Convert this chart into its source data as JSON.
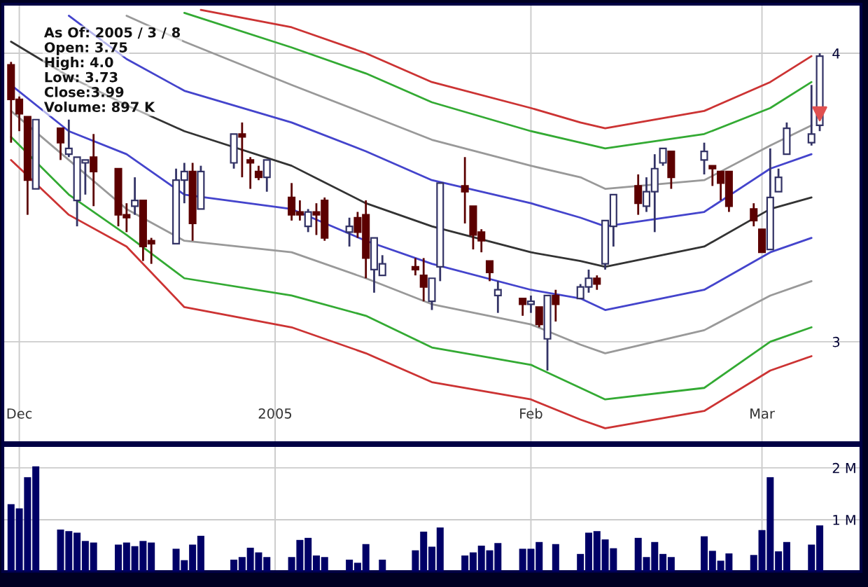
{
  "chart_data": [
    {
      "type": "candlestick",
      "x": [
        "2004-11-30",
        "2004-12-01",
        "2004-12-02",
        "2004-12-03",
        "2004-12-06",
        "2004-12-07",
        "2004-12-08",
        "2004-12-09",
        "2004-12-10",
        "2004-12-13",
        "2004-12-14",
        "2004-12-15",
        "2004-12-16",
        "2004-12-17",
        "2004-12-20",
        "2004-12-21",
        "2004-12-22",
        "2004-12-23",
        "2004-12-27",
        "2004-12-28",
        "2004-12-29",
        "2004-12-30",
        "2004-12-31",
        "2005-01-03",
        "2005-01-04",
        "2005-01-05",
        "2005-01-06",
        "2005-01-07",
        "2005-01-10",
        "2005-01-11",
        "2005-01-12",
        "2005-01-13",
        "2005-01-14",
        "2005-01-18",
        "2005-01-19",
        "2005-01-20",
        "2005-01-21",
        "2005-01-24",
        "2005-01-25",
        "2005-01-26",
        "2005-01-27",
        "2005-01-28",
        "2005-01-31",
        "2005-02-01",
        "2005-02-02",
        "2005-02-03",
        "2005-02-04",
        "2005-02-07",
        "2005-02-08",
        "2005-02-09",
        "2005-02-10",
        "2005-02-11",
        "2005-02-14",
        "2005-02-15",
        "2005-02-16",
        "2005-02-17",
        "2005-02-18",
        "2005-02-22",
        "2005-02-23",
        "2005-02-24",
        "2005-02-25",
        "2005-02-28",
        "2005-03-01",
        "2005-03-02",
        "2005-03-03",
        "2005-03-04",
        "2005-03-07",
        "2005-03-08"
      ],
      "ohlc": [
        [
          3.96,
          3.97,
          3.69,
          3.84
        ],
        [
          3.84,
          3.85,
          3.73,
          3.79
        ],
        [
          3.78,
          3.78,
          3.44,
          3.56
        ],
        [
          3.53,
          3.77,
          3.53,
          3.77
        ],
        [
          3.74,
          3.74,
          3.63,
          3.69
        ],
        [
          3.65,
          3.77,
          3.64,
          3.67
        ],
        [
          3.49,
          3.64,
          3.4,
          3.64
        ],
        [
          3.62,
          3.63,
          3.51,
          3.63
        ],
        [
          3.64,
          3.72,
          3.47,
          3.59
        ],
        [
          3.6,
          3.6,
          3.4,
          3.44
        ],
        [
          3.44,
          3.48,
          3.38,
          3.43
        ],
        [
          3.47,
          3.57,
          3.44,
          3.49
        ],
        [
          3.49,
          3.49,
          3.28,
          3.33
        ],
        [
          3.35,
          3.36,
          3.27,
          3.34
        ],
        [
          3.34,
          3.6,
          3.34,
          3.56
        ],
        [
          3.56,
          3.62,
          3.48,
          3.59
        ],
        [
          3.59,
          3.62,
          3.35,
          3.41
        ],
        [
          3.46,
          3.61,
          3.46,
          3.59
        ],
        [
          3.62,
          3.72,
          3.6,
          3.72
        ],
        [
          3.72,
          3.76,
          3.57,
          3.71
        ],
        [
          3.63,
          3.64,
          3.53,
          3.62
        ],
        [
          3.59,
          3.61,
          3.56,
          3.57
        ],
        [
          3.57,
          3.63,
          3.52,
          3.63
        ],
        [
          3.5,
          3.55,
          3.42,
          3.44
        ],
        [
          3.45,
          3.49,
          3.42,
          3.44
        ],
        [
          3.4,
          3.46,
          3.38,
          3.45
        ],
        [
          3.45,
          3.48,
          3.37,
          3.44
        ],
        [
          3.49,
          3.5,
          3.35,
          3.36
        ],
        [
          3.38,
          3.43,
          3.33,
          3.4
        ],
        [
          3.43,
          3.45,
          3.36,
          3.38
        ],
        [
          3.44,
          3.49,
          3.22,
          3.29
        ],
        [
          3.25,
          3.36,
          3.17,
          3.36
        ],
        [
          3.23,
          3.3,
          3.23,
          3.27
        ],
        [
          3.26,
          3.29,
          3.23,
          3.25
        ],
        [
          3.23,
          3.29,
          3.14,
          3.19
        ],
        [
          3.14,
          3.22,
          3.11,
          3.22
        ],
        [
          3.26,
          3.55,
          3.21,
          3.55
        ],
        [
          3.54,
          3.64,
          3.41,
          3.52
        ],
        [
          3.47,
          3.47,
          3.32,
          3.37
        ],
        [
          3.38,
          3.39,
          3.31,
          3.35
        ],
        [
          3.28,
          3.28,
          3.21,
          3.24
        ],
        [
          3.16,
          3.21,
          3.1,
          3.18
        ],
        [
          3.15,
          3.15,
          3.09,
          3.13
        ],
        [
          3.13,
          3.16,
          3.1,
          3.14
        ],
        [
          3.12,
          3.12,
          3.05,
          3.06
        ],
        [
          3.01,
          3.16,
          2.9,
          3.16
        ],
        [
          3.16,
          3.18,
          3.07,
          3.13
        ],
        [
          3.15,
          3.2,
          3.15,
          3.19
        ],
        [
          3.19,
          3.25,
          3.17,
          3.22
        ],
        [
          3.22,
          3.23,
          3.18,
          3.2
        ],
        [
          3.27,
          3.42,
          3.25,
          3.42
        ],
        [
          3.4,
          3.51,
          3.33,
          3.51
        ],
        [
          3.54,
          3.58,
          3.44,
          3.48
        ],
        [
          3.47,
          3.57,
          3.45,
          3.52
        ],
        [
          3.52,
          3.65,
          3.38,
          3.6
        ],
        [
          3.62,
          3.67,
          3.61,
          3.67
        ],
        [
          3.66,
          3.66,
          3.53,
          3.57
        ],
        [
          3.63,
          3.69,
          3.58,
          3.66
        ],
        [
          3.61,
          3.61,
          3.54,
          3.6
        ],
        [
          3.59,
          3.59,
          3.49,
          3.55
        ],
        [
          3.59,
          3.59,
          3.45,
          3.47
        ],
        [
          3.46,
          3.48,
          3.4,
          3.42
        ],
        [
          3.39,
          3.39,
          3.31,
          3.31
        ],
        [
          3.32,
          3.67,
          3.32,
          3.5
        ],
        [
          3.52,
          3.6,
          3.52,
          3.57
        ],
        [
          3.65,
          3.76,
          3.65,
          3.74
        ],
        [
          3.69,
          3.89,
          3.68,
          3.72
        ],
        [
          3.75,
          4.0,
          3.73,
          3.99
        ]
      ],
      "series": [
        {
          "type": "line",
          "color": "#cc3333",
          "x": [
            "2004-12-23",
            "2005-01-03",
            "2005-01-12",
            "2005-01-20",
            "2005-02-01",
            "2005-02-07",
            "2005-02-10",
            "2005-02-22",
            "2005-03-02",
            "2005-03-07"
          ],
          "values": [
            4.15,
            4.09,
            4.0,
            3.9,
            3.81,
            3.76,
            3.74,
            3.8,
            3.9,
            3.99
          ]
        },
        {
          "type": "line",
          "color": "#33aa33",
          "x": [
            "2004-12-21",
            "2005-01-03",
            "2005-01-12",
            "2005-01-20",
            "2005-02-01",
            "2005-02-07",
            "2005-02-10",
            "2005-02-22",
            "2005-03-02",
            "2005-03-07"
          ],
          "values": [
            4.14,
            4.02,
            3.93,
            3.83,
            3.73,
            3.69,
            3.67,
            3.72,
            3.81,
            3.9
          ]
        },
        {
          "type": "line",
          "color": "#999999",
          "x": [
            "2004-12-14",
            "2004-12-21",
            "2005-01-03",
            "2005-01-12",
            "2005-01-20",
            "2005-02-01",
            "2005-02-07",
            "2005-02-10",
            "2005-02-22",
            "2005-03-02",
            "2005-03-07"
          ],
          "values": [
            4.13,
            4.04,
            3.89,
            3.79,
            3.7,
            3.61,
            3.57,
            3.53,
            3.56,
            3.68,
            3.75
          ]
        },
        {
          "type": "line",
          "color": "#4444cc",
          "x": [
            "2004-12-07",
            "2004-12-14",
            "2004-12-21",
            "2005-01-03",
            "2005-01-12",
            "2005-01-20",
            "2005-02-01",
            "2005-02-07",
            "2005-02-10",
            "2005-02-22",
            "2005-03-02",
            "2005-03-07"
          ],
          "values": [
            4.13,
            3.98,
            3.87,
            3.76,
            3.66,
            3.56,
            3.48,
            3.43,
            3.4,
            3.45,
            3.6,
            3.65
          ]
        },
        {
          "type": "line",
          "color": "#333333",
          "x": [
            "2004-11-30",
            "2004-12-07",
            "2004-12-14",
            "2004-12-21",
            "2005-01-03",
            "2005-01-12",
            "2005-01-20",
            "2005-02-01",
            "2005-02-07",
            "2005-02-10",
            "2005-02-22",
            "2005-03-02",
            "2005-03-07"
          ],
          "values": [
            4.04,
            3.92,
            3.82,
            3.73,
            3.61,
            3.48,
            3.4,
            3.31,
            3.28,
            3.26,
            3.33,
            3.46,
            3.5
          ]
        },
        {
          "type": "line",
          "color": "#4444cc",
          "x": [
            "2004-11-30",
            "2004-12-07",
            "2004-12-14",
            "2004-12-21",
            "2005-01-03",
            "2005-01-12",
            "2005-01-20",
            "2005-02-01",
            "2005-02-07",
            "2005-02-10",
            "2005-02-22",
            "2005-03-02",
            "2005-03-07"
          ],
          "values": [
            3.89,
            3.73,
            3.65,
            3.51,
            3.46,
            3.35,
            3.27,
            3.18,
            3.15,
            3.11,
            3.18,
            3.31,
            3.36
          ]
        },
        {
          "type": "line",
          "color": "#999999",
          "x": [
            "2004-11-30",
            "2004-12-07",
            "2004-12-14",
            "2004-12-21",
            "2005-01-03",
            "2005-01-12",
            "2005-01-20",
            "2005-02-01",
            "2005-02-07",
            "2005-02-10",
            "2005-02-22",
            "2005-03-02",
            "2005-03-07"
          ],
          "values": [
            3.8,
            3.63,
            3.46,
            3.35,
            3.31,
            3.22,
            3.13,
            3.06,
            2.99,
            2.96,
            3.04,
            3.16,
            3.21
          ]
        },
        {
          "type": "line",
          "color": "#33aa33",
          "x": [
            "2004-11-30",
            "2004-12-07",
            "2004-12-14",
            "2004-12-21",
            "2005-01-03",
            "2005-01-12",
            "2005-01-20",
            "2005-02-01",
            "2005-02-07",
            "2005-02-10",
            "2005-02-22",
            "2005-03-02",
            "2005-03-07"
          ],
          "values": [
            3.71,
            3.51,
            3.37,
            3.22,
            3.16,
            3.09,
            2.98,
            2.92,
            2.84,
            2.8,
            2.84,
            3.0,
            3.05
          ]
        },
        {
          "type": "line",
          "color": "#cc3333",
          "x": [
            "2004-11-30",
            "2004-12-07",
            "2004-12-14",
            "2004-12-21",
            "2005-01-03",
            "2005-01-12",
            "2005-01-20",
            "2005-02-01",
            "2005-02-07",
            "2005-02-10",
            "2005-02-22",
            "2005-03-02",
            "2005-03-07"
          ],
          "values": [
            3.63,
            3.44,
            3.33,
            3.12,
            3.05,
            2.96,
            2.86,
            2.8,
            2.73,
            2.7,
            2.76,
            2.9,
            2.95
          ]
        },
        {
          "type": "scatter",
          "color": "#e05050",
          "marker": "triangle",
          "x": [
            "2005-03-08"
          ],
          "values": [
            3.79
          ]
        }
      ],
      "xlim": [
        "2004-11-29",
        "2005-03-13"
      ],
      "xticks": [
        {
          "value": "2004-12-01",
          "label": "Dec"
        },
        {
          "value": "2005-01-01",
          "label": "2005"
        },
        {
          "value": "2005-02-01",
          "label": "Feb"
        },
        {
          "value": "2005-03-01",
          "label": "Mar"
        }
      ],
      "ylim": [
        2.65,
        4.17
      ],
      "yticks": [
        3,
        4
      ],
      "grid": true,
      "annotations": [
        "As Of: 2005 / 3 / 8",
        "Open: 3.75",
        "High: 4.0",
        "Low: 3.73",
        "Close:3.99",
        "Volume: 897 K"
      ]
    },
    {
      "type": "bar",
      "color": "#000066",
      "x": [
        "2004-11-30",
        "2004-12-01",
        "2004-12-02",
        "2004-12-03",
        "2004-12-06",
        "2004-12-07",
        "2004-12-08",
        "2004-12-09",
        "2004-12-10",
        "2004-12-13",
        "2004-12-14",
        "2004-12-15",
        "2004-12-16",
        "2004-12-17",
        "2004-12-20",
        "2004-12-21",
        "2004-12-22",
        "2004-12-23",
        "2004-12-27",
        "2004-12-28",
        "2004-12-29",
        "2004-12-30",
        "2004-12-31",
        "2005-01-03",
        "2005-01-04",
        "2005-01-05",
        "2005-01-06",
        "2005-01-07",
        "2005-01-10",
        "2005-01-11",
        "2005-01-12",
        "2005-01-13",
        "2005-01-14",
        "2005-01-18",
        "2005-01-19",
        "2005-01-20",
        "2005-01-21",
        "2005-01-24",
        "2005-01-25",
        "2005-01-26",
        "2005-01-27",
        "2005-01-28",
        "2005-01-31",
        "2005-02-01",
        "2005-02-02",
        "2005-02-03",
        "2005-02-04",
        "2005-02-07",
        "2005-02-08",
        "2005-02-09",
        "2005-02-10",
        "2005-02-11",
        "2005-02-14",
        "2005-02-15",
        "2005-02-16",
        "2005-02-17",
        "2005-02-18",
        "2005-02-22",
        "2005-02-23",
        "2005-02-24",
        "2005-02-25",
        "2005-02-28",
        "2005-03-01",
        "2005-03-02",
        "2005-03-03",
        "2005-03-04",
        "2005-03-07",
        "2005-03-08"
      ],
      "values": [
        1.3,
        1.22,
        1.82,
        2.03,
        0.81,
        0.78,
        0.75,
        0.59,
        0.56,
        0.52,
        0.56,
        0.49,
        0.59,
        0.56,
        0.44,
        0.22,
        0.52,
        0.69,
        0.23,
        0.28,
        0.46,
        0.37,
        0.28,
        0.28,
        0.61,
        0.65,
        0.31,
        0.28,
        0.23,
        0.17,
        0.53,
        0,
        0.23,
        0.41,
        0.77,
        0.48,
        0.85,
        0.31,
        0.37,
        0.5,
        0.41,
        0.55,
        0.44,
        0.44,
        0.57,
        0,
        0.53,
        0.34,
        0.75,
        0.78,
        0.62,
        0.45,
        0.65,
        0.28,
        0.57,
        0.34,
        0.28,
        0.68,
        0.4,
        0.21,
        0.35,
        0.32,
        0.8,
        1.82,
        0.39,
        0.57,
        0.52,
        0.89
      ],
      "xlim": [
        "2004-11-29",
        "2005-03-13"
      ],
      "xticks": [
        {
          "value": "2004-12-01",
          "label": null
        },
        {
          "value": "2005-01-01",
          "label": null
        },
        {
          "value": "2005-02-01",
          "label": null
        },
        {
          "value": "2005-03-01",
          "label": null
        }
      ],
      "ylim": [
        0,
        2.43
      ],
      "yticks": [
        {
          "value": 1,
          "label": "1 M"
        },
        {
          "value": 2,
          "label": "2 M"
        }
      ],
      "grid": true,
      "tick_labels": "y"
    }
  ]
}
